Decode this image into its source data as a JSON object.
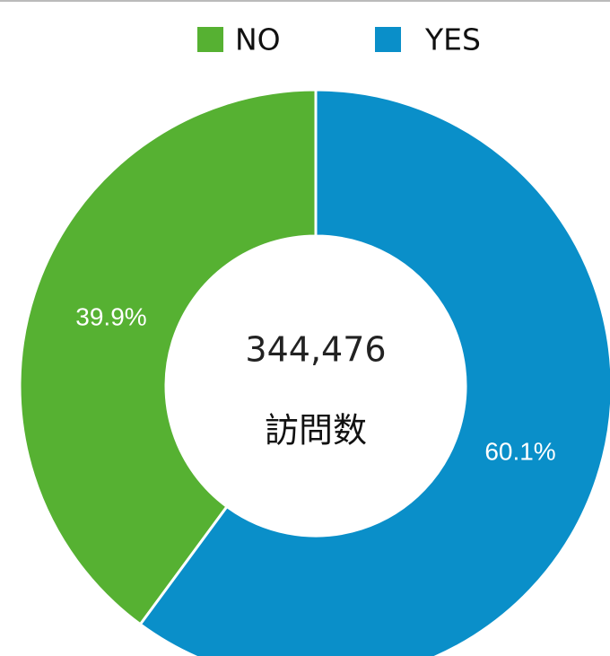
{
  "chart_data": {
    "type": "donut",
    "categories": [
      "NO",
      "YES"
    ],
    "values": [
      39.9,
      60.1
    ],
    "value_labels": [
      "39.9%",
      "60.1%"
    ],
    "colors": [
      "#56b132",
      "#0a8fc9"
    ],
    "center_text": "344,476",
    "center_label": "訪問数",
    "legend": "top"
  }
}
